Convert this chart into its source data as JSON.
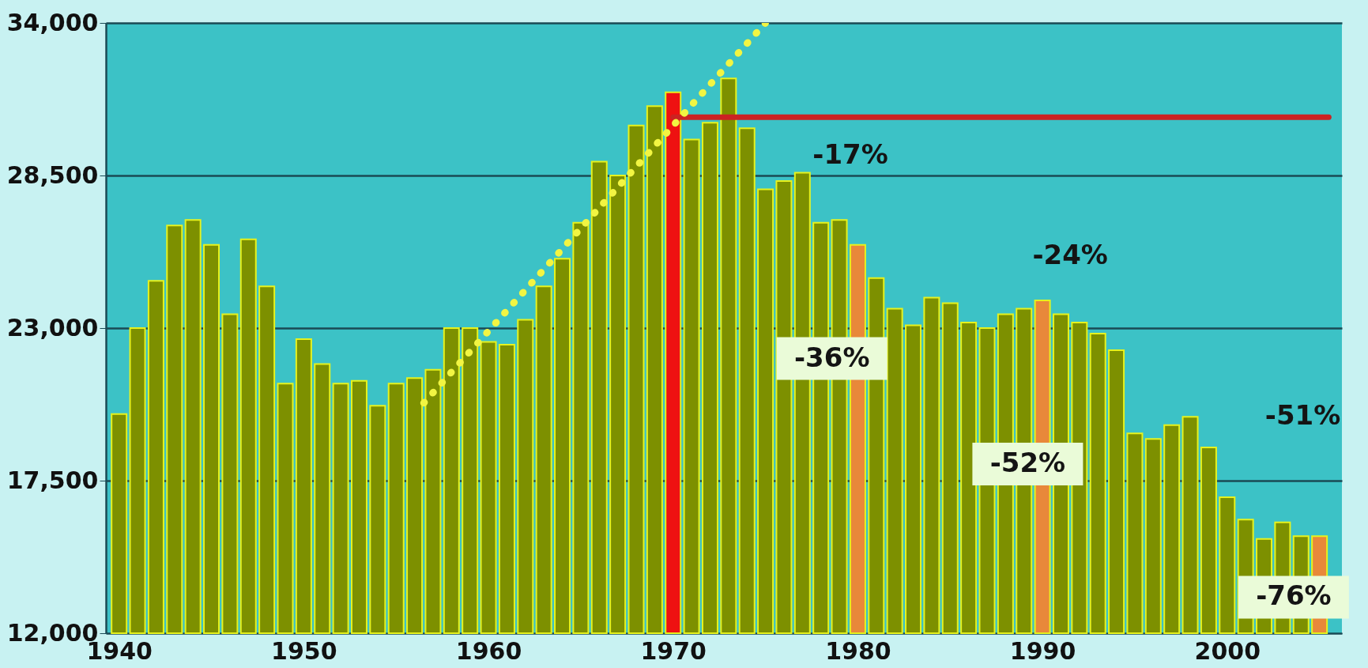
{
  "chart_data": {
    "type": "bar",
    "x": [
      1940,
      1941,
      1942,
      1943,
      1944,
      1945,
      1946,
      1947,
      1948,
      1949,
      1950,
      1951,
      1952,
      1953,
      1954,
      1955,
      1956,
      1957,
      1958,
      1959,
      1960,
      1961,
      1962,
      1963,
      1964,
      1965,
      1966,
      1967,
      1968,
      1969,
      1970,
      1971,
      1972,
      1973,
      1974,
      1975,
      1976,
      1977,
      1978,
      1979,
      1980,
      1981,
      1982,
      1983,
      1984,
      1985,
      1986,
      1987,
      1988,
      1989,
      1990,
      1991,
      1992,
      1993,
      1994,
      1995,
      1996,
      1997,
      1998,
      1999,
      2000,
      2001,
      2002,
      2003,
      2004,
      2005
    ],
    "series": [
      {
        "values": [
          19900,
          23000,
          24700,
          26700,
          26900,
          26000,
          23500,
          26200,
          24500,
          21000,
          22600,
          21700,
          21000,
          21100,
          20200,
          21000,
          21200,
          21500,
          23000,
          23000,
          22500,
          22400,
          23300,
          24500,
          25500,
          26800,
          29000,
          28500,
          30300,
          31000,
          31500,
          29800,
          30400,
          32000,
          30200,
          28000,
          28300,
          28600,
          26800,
          26900,
          26000,
          24800,
          23700,
          23100,
          24100,
          23900,
          23200,
          23000,
          23500,
          23700,
          24000,
          23500,
          23200,
          22800,
          22200,
          19200,
          19000,
          19500,
          19800,
          18700,
          16900,
          16100,
          15400,
          16000,
          15500,
          15500
        ],
        "colors": [
          "#7d9000",
          "#7d9000",
          "#7d9000",
          "#7d9000",
          "#7d9000",
          "#7d9000",
          "#7d9000",
          "#7d9000",
          "#7d9000",
          "#7d9000",
          "#7d9000",
          "#7d9000",
          "#7d9000",
          "#7d9000",
          "#7d9000",
          "#7d9000",
          "#7d9000",
          "#7d9000",
          "#7d9000",
          "#7d9000",
          "#7d9000",
          "#7d9000",
          "#7d9000",
          "#7d9000",
          "#7d9000",
          "#7d9000",
          "#7d9000",
          "#7d9000",
          "#7d9000",
          "#7d9000",
          "#ee1111",
          "#7d9000",
          "#7d9000",
          "#7d9000",
          "#7d9000",
          "#7d9000",
          "#7d9000",
          "#7d9000",
          "#7d9000",
          "#7d9000",
          "#e8883a",
          "#7d9000",
          "#7d9000",
          "#7d9000",
          "#7d9000",
          "#7d9000",
          "#7d9000",
          "#7d9000",
          "#7d9000",
          "#7d9000",
          "#e8883a",
          "#7d9000",
          "#7d9000",
          "#7d9000",
          "#7d9000",
          "#7d9000",
          "#7d9000",
          "#7d9000",
          "#7d9000",
          "#7d9000",
          "#7d9000",
          "#7d9000",
          "#7d9000",
          "#7d9000",
          "#7d9000",
          "#e8883a"
        ]
      },
      {
        "type": "line",
        "x": [
          1970,
          2005.5
        ],
        "values": [
          30600,
          30600
        ],
        "color": "#cc2222",
        "line_style": "solid"
      },
      {
        "type": "line",
        "x": [
          1956.5,
          1975
        ],
        "values": [
          20300,
          34000
        ],
        "color": "#f2f542",
        "line_style": "dotted"
      }
    ],
    "xlim": [
      1939.5,
      2006
    ],
    "xticks": [
      1940,
      1950,
      1960,
      1970,
      1980,
      1990,
      2000
    ],
    "ylim": [
      12000,
      34000
    ],
    "yticks": [
      {
        "value": 12000,
        "label": "12,000"
      },
      {
        "value": 17500,
        "label": "17,500"
      },
      {
        "value": 23000,
        "label": "23,000"
      },
      {
        "value": 28500,
        "label": "28,500"
      },
      {
        "value": 34000,
        "label": "34,000"
      }
    ],
    "grid": "y",
    "annotations": [
      "-17%",
      "-24%",
      "-36%",
      "-52%",
      "-51%",
      "-76%"
    ]
  }
}
